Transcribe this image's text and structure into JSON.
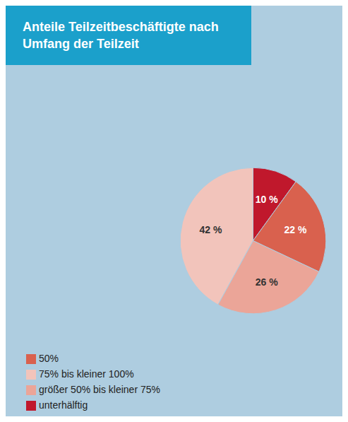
{
  "chart_data": {
    "type": "pie",
    "title": "Anteile Teilzeitbeschäftigte nach Umfang der Teilzeit",
    "categories": [
      "unterhälftig",
      "50%",
      "größer 50% bis kleiner 75%",
      "75% bis kleiner 100%"
    ],
    "values": [
      10,
      22,
      26,
      42
    ],
    "value_labels": [
      "10 %",
      "22 %",
      "26 %",
      "42 %"
    ],
    "colors": [
      "#C0182C",
      "#D9614E",
      "#EBA598",
      "#F2C4BB"
    ],
    "data_labels": true,
    "legend": "bottom"
  }
}
